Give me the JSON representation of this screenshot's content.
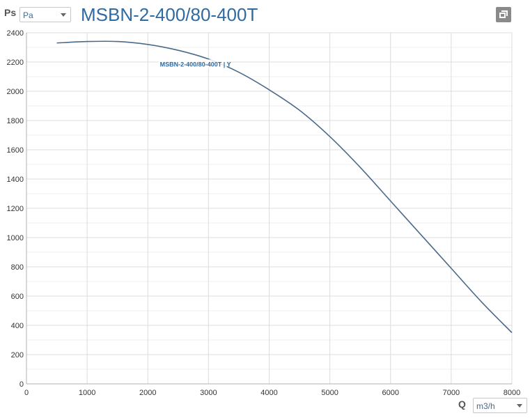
{
  "y_axis_label": "Ps",
  "x_axis_label": "Q",
  "y_unit_select": {
    "selected": "Pa"
  },
  "x_unit_select": {
    "selected": "m3/h"
  },
  "window_button_icon": "window-restore-icon",
  "colors": {
    "title": "#2f6aa2",
    "curve": "#4a6a8a",
    "grid": "#dcdcdc"
  },
  "chart_data": {
    "type": "line",
    "title": "MSBN-2-400/80-400T",
    "xlabel": "Q",
    "ylabel": "Ps",
    "xlim": [
      0,
      8000
    ],
    "ylim": [
      0,
      2400
    ],
    "x_ticks": [
      0,
      1000,
      2000,
      3000,
      4000,
      5000,
      6000,
      7000,
      8000
    ],
    "y_ticks": [
      0,
      200,
      400,
      600,
      800,
      1000,
      1200,
      1400,
      1600,
      1800,
      2000,
      2200,
      2400
    ],
    "grid": true,
    "series": [
      {
        "name": "MSBN-2-400/80-400T | Y",
        "x": [
          500,
          1000,
          1500,
          2000,
          2500,
          3000,
          3500,
          4000,
          4500,
          5000,
          5500,
          6000,
          6500,
          7000,
          7500,
          8000
        ],
        "y": [
          2330,
          2340,
          2340,
          2320,
          2280,
          2220,
          2130,
          2010,
          1870,
          1690,
          1480,
          1250,
          1020,
          790,
          560,
          350
        ]
      }
    ]
  }
}
